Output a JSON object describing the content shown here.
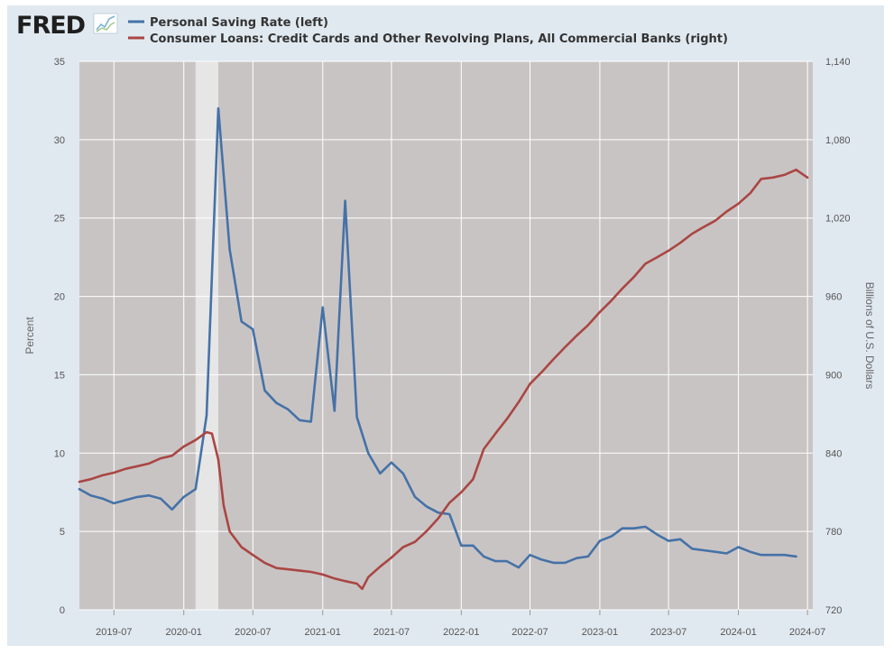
{
  "logo": {
    "text": "FRED"
  },
  "chart_data": {
    "type": "line",
    "title": "",
    "xlabel": "",
    "ylabel": "Percent",
    "y2label": "Billions of U.S. Dollars",
    "xlim": [
      "2019-04-01",
      "2024-07-15"
    ],
    "ylim": [
      0,
      35
    ],
    "y2lim": [
      720,
      1140
    ],
    "x_ticks": [
      "2019-07",
      "2020-01",
      "2020-07",
      "2021-01",
      "2021-07",
      "2022-01",
      "2022-07",
      "2023-01",
      "2023-07",
      "2024-01",
      "2024-07"
    ],
    "y_ticks": [
      "0",
      "5",
      "10",
      "15",
      "20",
      "25",
      "30",
      "35"
    ],
    "y2_ticks": [
      "720",
      "780",
      "840",
      "900",
      "960",
      "1,020",
      "1,080",
      "1,140"
    ],
    "grid": true,
    "legend": "top-left",
    "recession_shade": {
      "start": "2020-02-01",
      "end": "2020-04-01"
    },
    "colors": {
      "plot_bg": "#c9c4c4",
      "recession": "#e6e6e6",
      "frame": "#e1e9f0"
    },
    "series": [
      {
        "name": "Personal Saving Rate (left)",
        "axis": "left",
        "color": "#4572a7",
        "x": [
          "2019-04",
          "2019-05",
          "2019-06",
          "2019-07",
          "2019-08",
          "2019-09",
          "2019-10",
          "2019-11",
          "2019-12",
          "2020-01",
          "2020-02",
          "2020-03",
          "2020-04",
          "2020-05",
          "2020-06",
          "2020-07",
          "2020-08",
          "2020-09",
          "2020-10",
          "2020-11",
          "2020-12",
          "2021-01",
          "2021-02",
          "2021-03",
          "2021-04",
          "2021-05",
          "2021-06",
          "2021-07",
          "2021-08",
          "2021-09",
          "2021-10",
          "2021-11",
          "2021-12",
          "2022-01",
          "2022-02",
          "2022-03",
          "2022-04",
          "2022-05",
          "2022-06",
          "2022-07",
          "2022-08",
          "2022-09",
          "2022-10",
          "2022-11",
          "2022-12",
          "2023-01",
          "2023-02",
          "2023-03",
          "2023-04",
          "2023-05",
          "2023-06",
          "2023-07",
          "2023-08",
          "2023-09",
          "2023-10",
          "2023-11",
          "2023-12",
          "2024-01",
          "2024-02",
          "2024-03",
          "2024-04",
          "2024-05",
          "2024-06"
        ],
        "values": [
          7.7,
          7.3,
          7.1,
          6.8,
          7.0,
          7.2,
          7.3,
          7.1,
          6.4,
          7.2,
          7.7,
          12.4,
          32.0,
          23.0,
          18.4,
          17.9,
          14.0,
          13.2,
          12.8,
          12.1,
          12.0,
          19.3,
          12.7,
          26.1,
          12.3,
          10.0,
          8.7,
          9.4,
          8.7,
          7.2,
          6.6,
          6.2,
          6.1,
          4.1,
          4.1,
          3.4,
          3.1,
          3.1,
          2.7,
          3.5,
          3.2,
          3.0,
          3.0,
          3.3,
          3.4,
          4.4,
          4.7,
          5.2,
          5.2,
          5.3,
          4.8,
          4.4,
          4.5,
          3.9,
          3.8,
          3.7,
          3.6,
          4.0,
          3.7,
          3.5,
          3.5,
          3.5,
          3.4
        ]
      },
      {
        "name": "Consumer Loans: Credit Cards and Other Revolving Plans, All Commercial Banks (right)",
        "axis": "right",
        "color": "#aa4643",
        "x": [
          "2019-04-01",
          "2019-05-01",
          "2019-06-01",
          "2019-07-01",
          "2019-08-01",
          "2019-09-01",
          "2019-10-01",
          "2019-11-01",
          "2019-12-01",
          "2020-01-01",
          "2020-02-01",
          "2020-03-01",
          "2020-03-15",
          "2020-04-01",
          "2020-04-15",
          "2020-05-01",
          "2020-06-01",
          "2020-07-01",
          "2020-08-01",
          "2020-09-01",
          "2020-10-01",
          "2020-11-01",
          "2020-12-01",
          "2021-01-01",
          "2021-02-01",
          "2021-03-01",
          "2021-04-01",
          "2021-04-15",
          "2021-05-01",
          "2021-06-01",
          "2021-07-01",
          "2021-08-01",
          "2021-09-01",
          "2021-10-01",
          "2021-11-01",
          "2021-12-01",
          "2022-01-01",
          "2022-02-01",
          "2022-03-01",
          "2022-04-01",
          "2022-05-01",
          "2022-06-01",
          "2022-07-01",
          "2022-08-01",
          "2022-09-01",
          "2022-10-01",
          "2022-11-01",
          "2022-12-01",
          "2023-01-01",
          "2023-02-01",
          "2023-03-01",
          "2023-04-01",
          "2023-05-01",
          "2023-06-01",
          "2023-07-01",
          "2023-08-01",
          "2023-09-01",
          "2023-10-01",
          "2023-11-01",
          "2023-12-01",
          "2024-01-01",
          "2024-02-01",
          "2024-03-01",
          "2024-04-01",
          "2024-05-01",
          "2024-06-01",
          "2024-07-01"
        ],
        "values": [
          818,
          820,
          823,
          825,
          828,
          830,
          832,
          836,
          838,
          845,
          850,
          856,
          855,
          835,
          800,
          780,
          768,
          762,
          756,
          752,
          751,
          750,
          749,
          747,
          744,
          742,
          740,
          736,
          745,
          753,
          760,
          768,
          772,
          780,
          790,
          802,
          810,
          820,
          843,
          855,
          866,
          879,
          893,
          902,
          912,
          921,
          930,
          938,
          948,
          957,
          966,
          975,
          985,
          990,
          995,
          1001,
          1008,
          1013,
          1018,
          1025,
          1031,
          1039,
          1050,
          1051,
          1053,
          1057,
          1051
        ]
      }
    ]
  }
}
